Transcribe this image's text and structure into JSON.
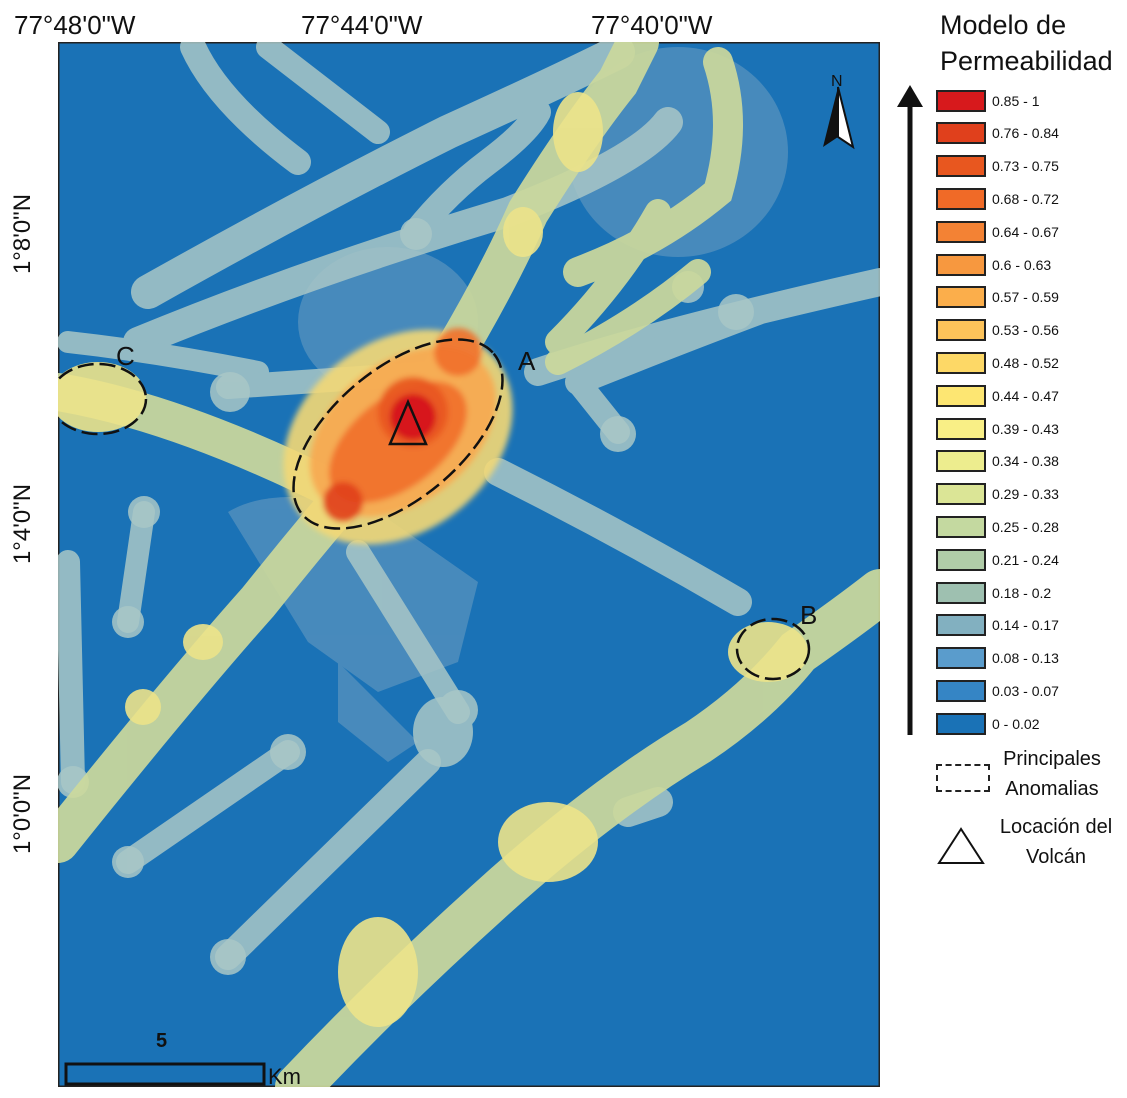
{
  "map": {
    "top_coords": [
      "77°48'0\"W",
      "77°44'0\"W",
      "77°40'0\"W"
    ],
    "left_coords": [
      "1°8'0\"N",
      "1°4'0\"N",
      "1°0'0\"N"
    ],
    "anomaly_labels": [
      "A",
      "B",
      "C"
    ],
    "north_label": "N",
    "scale_value": "5",
    "scale_unit": "Km",
    "colors": {
      "background": "#1a72b6",
      "low": "#a9c7c7",
      "mid": "#ece38a",
      "high": "#e84a1a"
    }
  },
  "legend": {
    "title_line1": "Modelo de",
    "title_line2": "Permeabilidad",
    "classes": [
      {
        "label": "0.85 - 1",
        "color": "#d7191c"
      },
      {
        "label": "0.76 - 0.84",
        "color": "#e0401c"
      },
      {
        "label": "0.73 - 0.75",
        "color": "#e8571f"
      },
      {
        "label": "0.68 - 0.72",
        "color": "#f06a27"
      },
      {
        "label": "0.64 - 0.67",
        "color": "#f38234"
      },
      {
        "label": "0.6 - 0.63",
        "color": "#f7983f"
      },
      {
        "label": "0.57 - 0.59",
        "color": "#fbae4b"
      },
      {
        "label": "0.53 - 0.56",
        "color": "#fdc35a"
      },
      {
        "label": "0.48 - 0.52",
        "color": "#fdd866"
      },
      {
        "label": "0.44 - 0.47",
        "color": "#fde672"
      },
      {
        "label": "0.39 - 0.43",
        "color": "#f9ef86"
      },
      {
        "label": "0.34 - 0.38",
        "color": "#eded8e"
      },
      {
        "label": "0.29 - 0.33",
        "color": "#dbe596"
      },
      {
        "label": "0.25 - 0.28",
        "color": "#c4d9a0"
      },
      {
        "label": "0.21 - 0.24",
        "color": "#b0cca8"
      },
      {
        "label": "0.18 - 0.2",
        "color": "#9ec0b0"
      },
      {
        "label": "0.14 - 0.17",
        "color": "#82b0c0"
      },
      {
        "label": "0.08 - 0.13",
        "color": "#5a9ccc"
      },
      {
        "label": "0.03 - 0.07",
        "color": "#3585c5"
      },
      {
        "label": "0 - 0.02",
        "color": "#1a72b6"
      }
    ],
    "anomalies_line1": "Principales",
    "anomalies_line2": "Anomalias",
    "volcano_line1": "Locación del",
    "volcano_line2": "Volcán"
  }
}
